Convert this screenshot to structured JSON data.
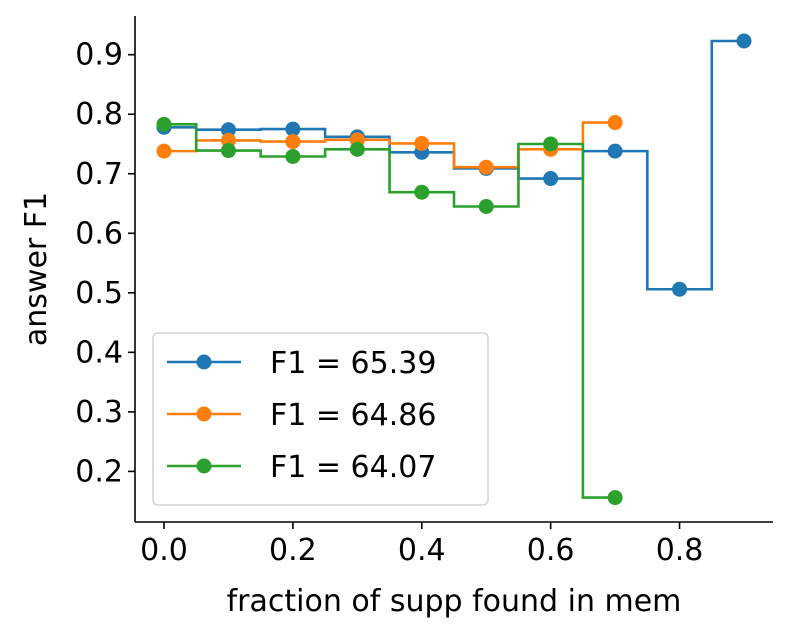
{
  "chart_data": {
    "type": "line",
    "step": "mid",
    "title": "",
    "xlabel": "fraction of supp found in mem",
    "ylabel": "answer F1",
    "xlim": [
      -0.045,
      0.945
    ],
    "ylim": [
      0.115,
      0.965
    ],
    "xticks": [
      0.0,
      0.2,
      0.4,
      0.6,
      0.8
    ],
    "xtick_labels": [
      "0.0",
      "0.2",
      "0.4",
      "0.6",
      "0.8"
    ],
    "yticks": [
      0.2,
      0.3,
      0.4,
      0.5,
      0.6,
      0.7,
      0.8,
      0.9
    ],
    "ytick_labels": [
      "0.2",
      "0.3",
      "0.4",
      "0.5",
      "0.6",
      "0.7",
      "0.8",
      "0.9"
    ],
    "grid": false,
    "legend_position": "lower-left",
    "series": [
      {
        "name": "F1 = 65.39",
        "color": "#1f77b4",
        "x": [
          0.0,
          0.1,
          0.2,
          0.3,
          0.4,
          0.5,
          0.6,
          0.7,
          0.8,
          0.9
        ],
        "y": [
          0.778,
          0.774,
          0.775,
          0.762,
          0.736,
          0.709,
          0.692,
          0.738,
          0.506,
          0.923
        ]
      },
      {
        "name": "F1 = 64.86",
        "color": "#ff7f0e",
        "x": [
          0.0,
          0.1,
          0.2,
          0.3,
          0.4,
          0.5,
          0.6,
          0.7
        ],
        "y": [
          0.738,
          0.756,
          0.754,
          0.757,
          0.751,
          0.711,
          0.741,
          0.786
        ]
      },
      {
        "name": "F1 = 64.07",
        "color": "#2ca02c",
        "x": [
          0.0,
          0.1,
          0.2,
          0.3,
          0.4,
          0.5,
          0.6,
          0.7
        ],
        "y": [
          0.783,
          0.739,
          0.729,
          0.741,
          0.669,
          0.645,
          0.75,
          0.156
        ]
      }
    ]
  }
}
